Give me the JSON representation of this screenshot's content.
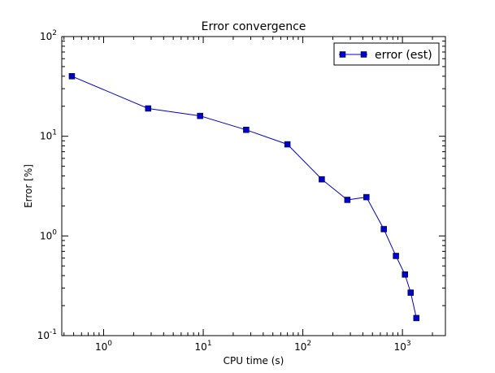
{
  "chart_data": {
    "type": "line",
    "title": "Error convergence",
    "xlabel": "CPU time (s)",
    "ylabel": "Error [%]",
    "xscale": "log",
    "yscale": "log",
    "xlim": [
      0.38,
      2700
    ],
    "ylim": [
      0.1,
      100
    ],
    "grid": false,
    "legend_position": "top-right",
    "xticks": [
      {
        "value": 1,
        "base": "10",
        "exp": "0"
      },
      {
        "value": 10,
        "base": "10",
        "exp": "1"
      },
      {
        "value": 100,
        "base": "10",
        "exp": "2"
      },
      {
        "value": 1000,
        "base": "10",
        "exp": "3"
      }
    ],
    "yticks": [
      {
        "value": 0.1,
        "base": "10",
        "exp": "-1"
      },
      {
        "value": 1,
        "base": "10",
        "exp": "0"
      },
      {
        "value": 10,
        "base": "10",
        "exp": "1"
      },
      {
        "value": 100,
        "base": "10",
        "exp": "2"
      }
    ],
    "series": [
      {
        "name": "error (est)",
        "color": "#0000cc",
        "marker": "square",
        "x": [
          0.48,
          2.8,
          9.3,
          27,
          70,
          155,
          280,
          435,
          650,
          860,
          1060,
          1210,
          1380
        ],
        "y": [
          40,
          19,
          16,
          11.6,
          8.3,
          3.7,
          2.3,
          2.45,
          1.17,
          0.63,
          0.41,
          0.27,
          0.15
        ]
      }
    ]
  }
}
